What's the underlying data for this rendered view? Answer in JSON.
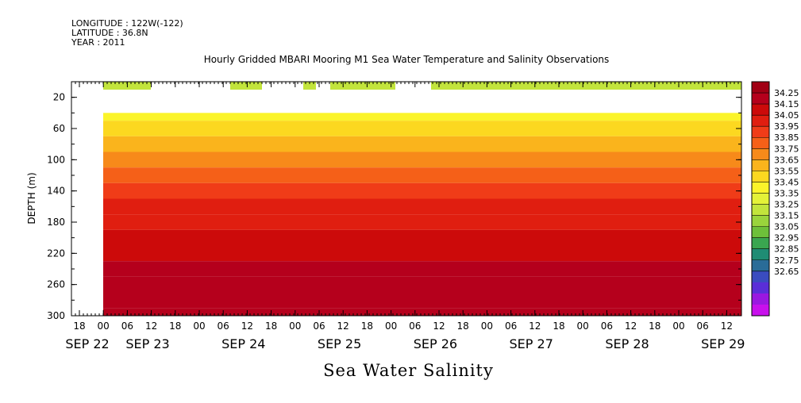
{
  "header": {
    "longitude": "LONGITUDE : 122W(-122)",
    "latitude": "LATITUDE : 36.8N",
    "year": "YEAR : 2011"
  },
  "title": "Hourly Gridded MBARI Mooring M1 Sea Water Temperature and Salinity Observations",
  "subtitle": "Sea Water Salinity",
  "chart_data": {
    "type": "heatmap",
    "ylabel": "DEPTH (m)",
    "y_ticks": [
      20,
      60,
      100,
      140,
      180,
      220,
      260,
      300
    ],
    "ylim": [
      300,
      0
    ],
    "x_hour_ticks": [
      "18",
      "00",
      "06",
      "12",
      "18",
      "00",
      "06",
      "12",
      "18",
      "00",
      "06",
      "12",
      "18",
      "00",
      "06",
      "12",
      "18",
      "00",
      "06",
      "12",
      "18",
      "00",
      "06",
      "12",
      "18",
      "00",
      "06",
      "12",
      "18",
      "00",
      "06",
      "12"
    ],
    "x_day_labels": [
      "SEP 22",
      "SEP 23",
      "SEP 24",
      "SEP 25",
      "SEP 26",
      "SEP 27",
      "SEP 28",
      "SEP 29"
    ],
    "colorbar": {
      "levels": [
        "34.25",
        "34.15",
        "34.05",
        "33.95",
        "33.85",
        "33.75",
        "33.65",
        "33.55",
        "33.45",
        "33.35",
        "33.25",
        "33.15",
        "33.05",
        "32.95",
        "32.85",
        "32.75",
        "32.65"
      ],
      "colors": [
        "#a10014",
        "#b5001c",
        "#cc0a0a",
        "#e01e10",
        "#f03c18",
        "#f56018",
        "#f78a1a",
        "#fab41c",
        "#fcd820",
        "#fbf42a",
        "#e4f238",
        "#c2e43c",
        "#9ad43c",
        "#6ec03a",
        "#3aa650",
        "#1f8c74",
        "#2a6c98",
        "#3a4cc0",
        "#5a2ed8",
        "#9a18e0",
        "#c810ec"
      ],
      "colors_note": ""
    },
    "profile": [
      {
        "depth": 40,
        "value": 33.35
      },
      {
        "depth": 60,
        "value": 33.45
      },
      {
        "depth": 80,
        "value": 33.55
      },
      {
        "depth": 100,
        "value": 33.65
      },
      {
        "depth": 120,
        "value": 33.8
      },
      {
        "depth": 140,
        "value": 33.9
      },
      {
        "depth": 160,
        "value": 33.95
      },
      {
        "depth": 180,
        "value": 34.0
      },
      {
        "depth": 200,
        "value": 34.05
      },
      {
        "depth": 220,
        "value": 34.1
      },
      {
        "depth": 240,
        "value": 34.15
      },
      {
        "depth": 260,
        "value": 34.2
      },
      {
        "depth": 280,
        "value": 34.2
      },
      {
        "depth": 300,
        "value": 34.2
      }
    ],
    "surface_value": 33.2
  }
}
